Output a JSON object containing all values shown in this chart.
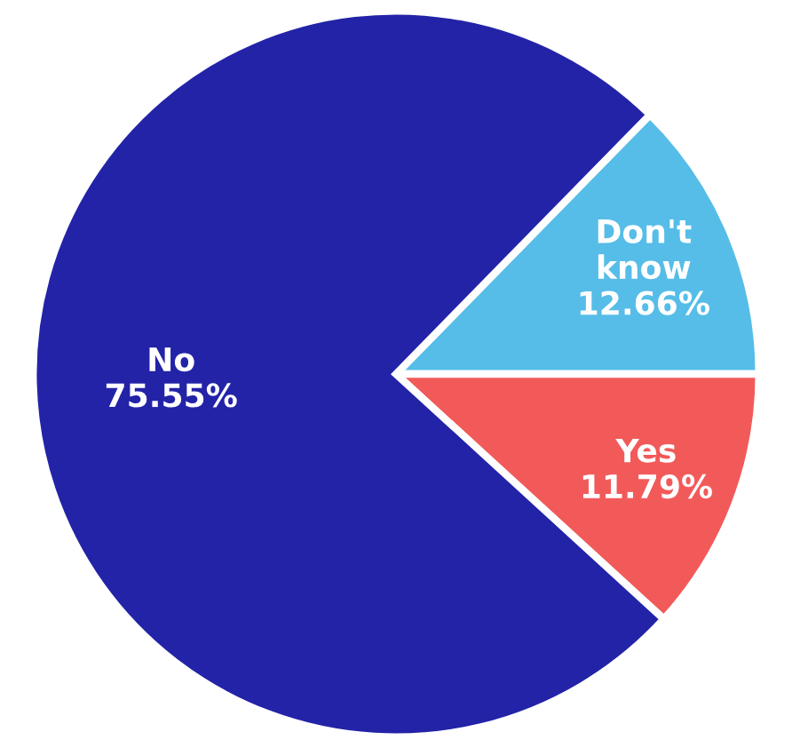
{
  "chart_data": {
    "type": "pie",
    "categories": [
      "Don't know",
      "Yes",
      "No"
    ],
    "values": [
      12.66,
      11.79,
      75.55
    ],
    "colors": [
      "#56bde8",
      "#f25a5a",
      "#2323a8"
    ],
    "value_labels": [
      "12.66%",
      "11.79%",
      "75.55%"
    ]
  }
}
